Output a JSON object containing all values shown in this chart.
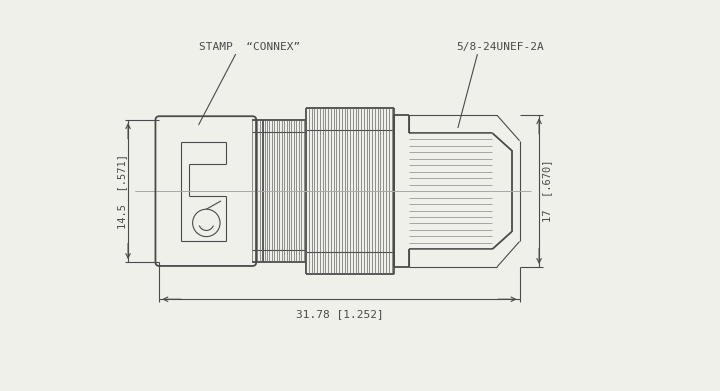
{
  "bg_color": "#f0f0eb",
  "line_color": "#4a4a4a",
  "stamp_label": "STAMP  “CONNEX”",
  "thread_label": "5/8-24UNEF-2A",
  "dim_left": "14.5  [.571]",
  "dim_right": "17  [.670]",
  "dim_bottom": "31.78 [1.252]",
  "lw_main": 1.3,
  "lw_thin": 0.8,
  "lw_dim": 0.8,
  "lw_knurl": 0.5
}
